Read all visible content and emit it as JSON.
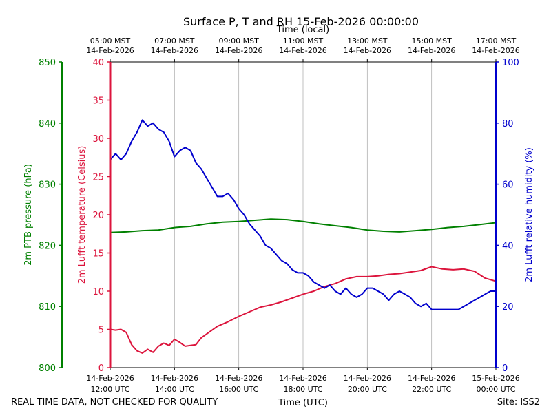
{
  "chart_data": {
    "type": "line",
    "title": "Surface P, T and RH 15-Feb-2026 00:00:00",
    "top_axis_title": "Time (local)",
    "xlabel": "Time (UTC)",
    "x_range": [
      "2026-02-14T12:00",
      "2026-02-15T00:00"
    ],
    "x_ticks_utc": [
      {
        "date": "14-Feb-2026",
        "time": "12:00 UTC"
      },
      {
        "date": "14-Feb-2026",
        "time": "14:00 UTC"
      },
      {
        "date": "14-Feb-2026",
        "time": "16:00 UTC"
      },
      {
        "date": "14-Feb-2026",
        "time": "18:00 UTC"
      },
      {
        "date": "14-Feb-2026",
        "time": "20:00 UTC"
      },
      {
        "date": "14-Feb-2026",
        "time": "22:00 UTC"
      },
      {
        "date": "15-Feb-2026",
        "time": "00:00 UTC"
      }
    ],
    "x_ticks_local": [
      {
        "time": "05:00 MST",
        "date": "14-Feb-2026"
      },
      {
        "time": "07:00 MST",
        "date": "14-Feb-2026"
      },
      {
        "time": "09:00 MST",
        "date": "14-Feb-2026"
      },
      {
        "time": "11:00 MST",
        "date": "14-Feb-2026"
      },
      {
        "time": "13:00 MST",
        "date": "14-Feb-2026"
      },
      {
        "time": "15:00 MST",
        "date": "14-Feb-2026"
      },
      {
        "time": "17:00 MST",
        "date": "14-Feb-2026"
      }
    ],
    "grid": "vertical",
    "axes": {
      "pressure": {
        "label": "2m PTB pressure (hPa)",
        "ylim": [
          800,
          850
        ],
        "ticks": [
          "800",
          "810",
          "820",
          "830",
          "840",
          "850"
        ],
        "color": "#008000"
      },
      "temperature": {
        "label": "2m Lufft temperature (Celsius)",
        "ylim": [
          0,
          40
        ],
        "ticks": [
          "0",
          "5",
          "10",
          "15",
          "20",
          "25",
          "30",
          "35",
          "40"
        ],
        "color": "#dc143c"
      },
      "humidity": {
        "label": "2m Lufft relative humidity (%)",
        "ylim": [
          0,
          100
        ],
        "ticks": [
          "0",
          "20",
          "40",
          "60",
          "80",
          "100"
        ],
        "color": "#0000cd"
      }
    },
    "series": [
      {
        "axis": "pressure",
        "color": "#008000",
        "points": [
          [
            "12:00",
            822.1
          ],
          [
            "12:30",
            822.2
          ],
          [
            "13:00",
            822.4
          ],
          [
            "13:30",
            822.5
          ],
          [
            "14:00",
            822.9
          ],
          [
            "14:30",
            823.1
          ],
          [
            "15:00",
            823.5
          ],
          [
            "15:30",
            823.8
          ],
          [
            "16:00",
            823.9
          ],
          [
            "16:30",
            824.1
          ],
          [
            "17:00",
            824.3
          ],
          [
            "17:30",
            824.2
          ],
          [
            "18:00",
            823.9
          ],
          [
            "18:30",
            823.5
          ],
          [
            "19:00",
            823.2
          ],
          [
            "19:30",
            822.9
          ],
          [
            "20:00",
            822.5
          ],
          [
            "20:30",
            822.3
          ],
          [
            "21:00",
            822.2
          ],
          [
            "21:30",
            822.4
          ],
          [
            "22:00",
            822.6
          ],
          [
            "22:30",
            822.9
          ],
          [
            "23:00",
            823.1
          ],
          [
            "23:30",
            823.4
          ],
          [
            "24:00",
            823.7
          ]
        ]
      },
      {
        "axis": "temperature",
        "color": "#dc143c",
        "points": [
          [
            "12:00",
            5.0
          ],
          [
            "12:10",
            4.9
          ],
          [
            "12:20",
            5.0
          ],
          [
            "12:30",
            4.6
          ],
          [
            "12:40",
            3.0
          ],
          [
            "12:50",
            2.2
          ],
          [
            "13:00",
            1.9
          ],
          [
            "13:10",
            2.4
          ],
          [
            "13:20",
            2.0
          ],
          [
            "13:30",
            2.8
          ],
          [
            "13:40",
            3.2
          ],
          [
            "13:50",
            2.9
          ],
          [
            "14:00",
            3.7
          ],
          [
            "14:10",
            3.3
          ],
          [
            "14:20",
            2.8
          ],
          [
            "14:30",
            2.9
          ],
          [
            "14:40",
            3.0
          ],
          [
            "14:50",
            3.9
          ],
          [
            "15:00",
            4.4
          ],
          [
            "15:20",
            5.4
          ],
          [
            "15:40",
            6.0
          ],
          [
            "16:00",
            6.7
          ],
          [
            "16:20",
            7.3
          ],
          [
            "16:40",
            7.9
          ],
          [
            "17:00",
            8.2
          ],
          [
            "17:20",
            8.6
          ],
          [
            "17:40",
            9.1
          ],
          [
            "18:00",
            9.6
          ],
          [
            "18:20",
            10.0
          ],
          [
            "18:40",
            10.6
          ],
          [
            "19:00",
            11.0
          ],
          [
            "19:20",
            11.6
          ],
          [
            "19:40",
            11.9
          ],
          [
            "20:00",
            11.9
          ],
          [
            "20:20",
            12.0
          ],
          [
            "20:40",
            12.2
          ],
          [
            "21:00",
            12.3
          ],
          [
            "21:20",
            12.5
          ],
          [
            "21:40",
            12.7
          ],
          [
            "22:00",
            13.2
          ],
          [
            "22:20",
            12.9
          ],
          [
            "22:40",
            12.8
          ],
          [
            "23:00",
            12.9
          ],
          [
            "23:20",
            12.6
          ],
          [
            "23:40",
            11.7
          ],
          [
            "24:00",
            11.3
          ]
        ]
      },
      {
        "axis": "humidity",
        "color": "#0000cd",
        "points": [
          [
            "12:00",
            68
          ],
          [
            "12:10",
            70
          ],
          [
            "12:20",
            68
          ],
          [
            "12:30",
            70
          ],
          [
            "12:40",
            74
          ],
          [
            "12:50",
            77
          ],
          [
            "13:00",
            81
          ],
          [
            "13:10",
            79
          ],
          [
            "13:20",
            80
          ],
          [
            "13:30",
            78
          ],
          [
            "13:40",
            77
          ],
          [
            "13:50",
            74
          ],
          [
            "14:00",
            69
          ],
          [
            "14:10",
            71
          ],
          [
            "14:20",
            72
          ],
          [
            "14:30",
            71
          ],
          [
            "14:40",
            67
          ],
          [
            "14:50",
            65
          ],
          [
            "15:00",
            62
          ],
          [
            "15:10",
            59
          ],
          [
            "15:20",
            56
          ],
          [
            "15:30",
            56
          ],
          [
            "15:40",
            57
          ],
          [
            "15:50",
            55
          ],
          [
            "16:00",
            52
          ],
          [
            "16:10",
            50
          ],
          [
            "16:20",
            47
          ],
          [
            "16:30",
            45
          ],
          [
            "16:40",
            43
          ],
          [
            "16:50",
            40
          ],
          [
            "17:00",
            39
          ],
          [
            "17:10",
            37
          ],
          [
            "17:20",
            35
          ],
          [
            "17:30",
            34
          ],
          [
            "17:40",
            32
          ],
          [
            "17:50",
            31
          ],
          [
            "18:00",
            31
          ],
          [
            "18:10",
            30
          ],
          [
            "18:20",
            28
          ],
          [
            "18:30",
            27
          ],
          [
            "18:40",
            26
          ],
          [
            "18:50",
            27
          ],
          [
            "19:00",
            25
          ],
          [
            "19:10",
            24
          ],
          [
            "19:20",
            26
          ],
          [
            "19:30",
            24
          ],
          [
            "19:40",
            23
          ],
          [
            "19:50",
            24
          ],
          [
            "20:00",
            26
          ],
          [
            "20:10",
            26
          ],
          [
            "20:20",
            25
          ],
          [
            "20:30",
            24
          ],
          [
            "20:40",
            22
          ],
          [
            "20:50",
            24
          ],
          [
            "21:00",
            25
          ],
          [
            "21:10",
            24
          ],
          [
            "21:20",
            23
          ],
          [
            "21:30",
            21
          ],
          [
            "21:40",
            20
          ],
          [
            "21:50",
            21
          ],
          [
            "22:00",
            19
          ],
          [
            "22:10",
            19
          ],
          [
            "22:20",
            19
          ],
          [
            "22:30",
            19
          ],
          [
            "22:40",
            19
          ],
          [
            "22:50",
            19
          ],
          [
            "23:00",
            20
          ],
          [
            "23:10",
            21
          ],
          [
            "23:20",
            22
          ],
          [
            "23:30",
            23
          ],
          [
            "23:40",
            24
          ],
          [
            "23:50",
            25
          ],
          [
            "24:00",
            25
          ]
        ]
      }
    ]
  },
  "footer": {
    "left_note": "REAL TIME DATA, NOT CHECKED FOR QUALITY",
    "site": "Site: ISS2"
  }
}
